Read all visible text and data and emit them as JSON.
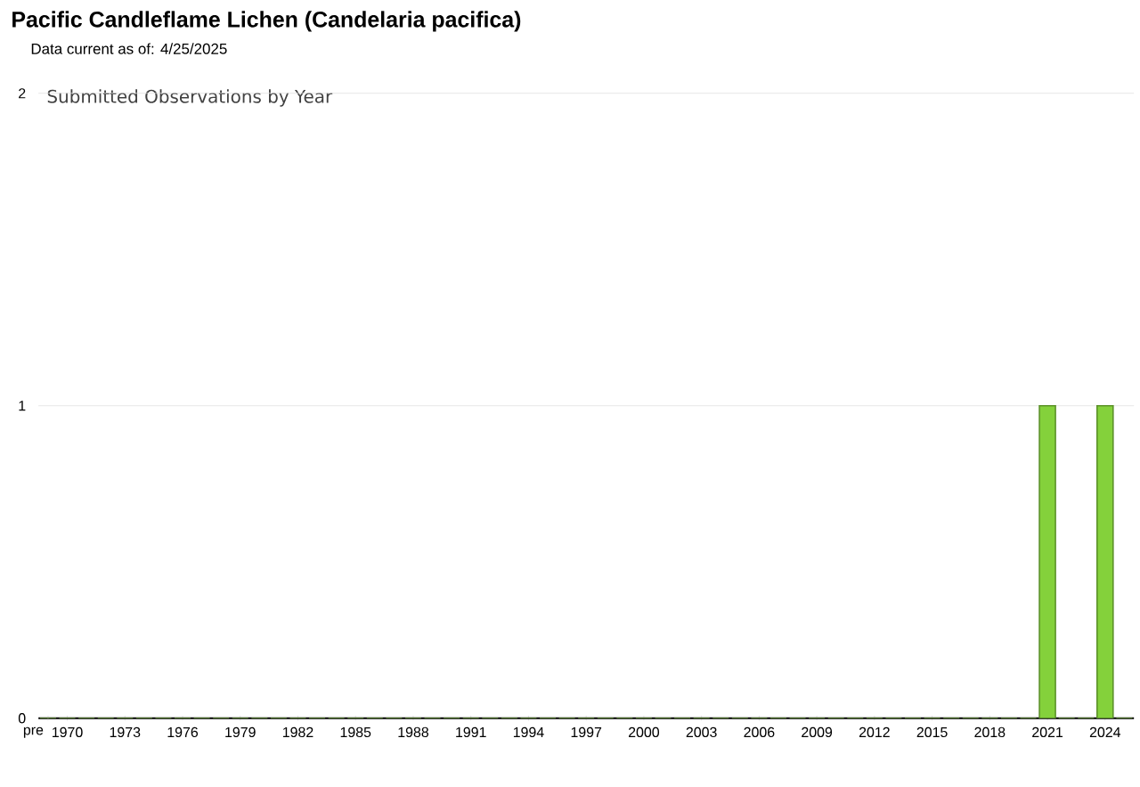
{
  "chart_data": {
    "type": "bar",
    "title": "Pacific Candleflame Lichen   (Candelaria pacifica)",
    "subtitle": "Data current as of: 4/25/2025",
    "annotations": [
      "Submitted Observations by Year"
    ],
    "categories": [
      "pre",
      "1970",
      null,
      null,
      "1973",
      null,
      null,
      "1976",
      null,
      null,
      "1979",
      null,
      null,
      "1982",
      null,
      null,
      "1985",
      null,
      null,
      "1988",
      null,
      null,
      "1991",
      null,
      null,
      "1994",
      null,
      null,
      "1997",
      null,
      null,
      "2000",
      null,
      null,
      "2003",
      null,
      null,
      "2006",
      null,
      null,
      "2009",
      null,
      null,
      "2012",
      null,
      null,
      "2015",
      null,
      null,
      "2018",
      null,
      null,
      "2021",
      null,
      null,
      "2024",
      null
    ],
    "values": [
      0,
      0,
      0,
      0,
      0,
      0,
      0,
      0,
      0,
      0,
      0,
      0,
      0,
      0,
      0,
      0,
      0,
      0,
      0,
      0,
      0,
      0,
      0,
      0,
      0,
      0,
      0,
      0,
      0,
      0,
      0,
      0,
      0,
      0,
      0,
      0,
      0,
      0,
      0,
      0,
      0,
      0,
      0,
      0,
      0,
      0,
      0,
      0,
      0,
      0,
      0,
      0,
      1,
      0,
      0,
      1,
      0
    ],
    "color": "#84d13b",
    "ylim": [
      0,
      2
    ],
    "yticks": [
      0,
      1,
      2
    ],
    "grid": "y"
  }
}
